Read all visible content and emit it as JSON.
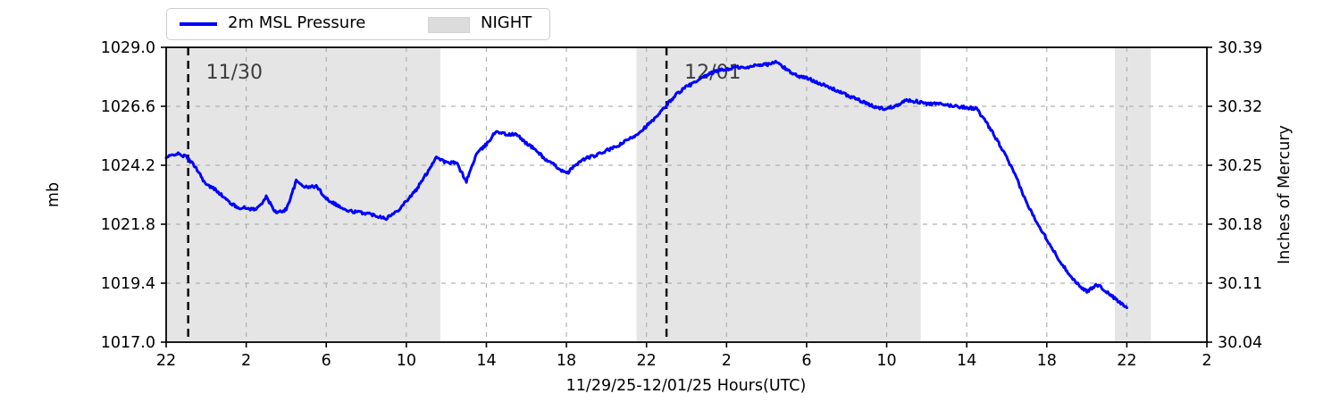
{
  "legend": {
    "pressure_label": "2m MSL Pressure",
    "night_label": "NIGHT"
  },
  "colors": {
    "line": "#0000ff",
    "night_fill": "#e5e5e5",
    "night_patch": "#dcdcdc",
    "grid": "#b0b0b0",
    "spine": "#000000",
    "day_line": "#000000",
    "day_label": "#3d3d3d"
  },
  "chart_data": {
    "type": "line",
    "title": "",
    "xlabel": "11/29/25-12/01/25  Hours(UTC)",
    "ylabel_left": "mb",
    "ylabel_right": "Inches of Mercury",
    "grid": true,
    "legend_position": "top-left",
    "x_axis": {
      "units": "hours after 11/29/25 22:00 UTC",
      "range_hours": [
        0,
        52
      ],
      "tick_hours": [
        0,
        4,
        8,
        12,
        16,
        20,
        24,
        28,
        32,
        36,
        40,
        44,
        48,
        52
      ],
      "tick_labels": [
        "22",
        "2",
        "6",
        "10",
        "14",
        "18",
        "22",
        "2",
        "6",
        "10",
        "14",
        "18",
        "22",
        "2"
      ]
    },
    "y_axis_left": {
      "lim": [
        1017.0,
        1029.0
      ],
      "ticks": [
        1017.0,
        1019.4,
        1021.8,
        1024.2,
        1026.6,
        1029.0
      ],
      "tick_labels": [
        "1017.0",
        "1019.4",
        "1021.8",
        "1024.2",
        "1026.6",
        "1029.0"
      ]
    },
    "y_axis_right": {
      "tick_labels": [
        "30.04",
        "30.11",
        "30.18",
        "30.25",
        "30.32",
        "30.39"
      ]
    },
    "night_regions_hours": [
      [
        0,
        13.7
      ],
      [
        23.5,
        37.7
      ],
      [
        47.4,
        49.2
      ]
    ],
    "day_markers": [
      {
        "x_hour": 1.1,
        "label": "11/30"
      },
      {
        "x_hour": 25.0,
        "label": "12/01"
      }
    ],
    "series": [
      {
        "name": "2m MSL Pressure",
        "color": "#0000ff",
        "x_hours": [
          0,
          0.5,
          1,
          1.5,
          2,
          2.5,
          3,
          3.5,
          4,
          4.5,
          5,
          5.5,
          6,
          6.5,
          7,
          7.5,
          8,
          8.5,
          9,
          9.5,
          10,
          10.5,
          11,
          11.5,
          12,
          12.5,
          13,
          13.5,
          14,
          14.5,
          15,
          15.5,
          16,
          16.5,
          17,
          17.5,
          18,
          18.5,
          19,
          19.5,
          20,
          20.5,
          21,
          21.5,
          22,
          22.5,
          23,
          23.5,
          24,
          24.5,
          25,
          25.5,
          26,
          26.5,
          27,
          27.5,
          28,
          28.5,
          29,
          29.5,
          30,
          30.5,
          31,
          31.5,
          32,
          32.5,
          33,
          33.5,
          34,
          34.5,
          35,
          35.5,
          36,
          36.5,
          37,
          37.5,
          38,
          38.5,
          39,
          39.5,
          40,
          40.5,
          41,
          41.5,
          42,
          42.5,
          43,
          43.5,
          44,
          44.5,
          45,
          45.5,
          46,
          46.5,
          47,
          47.5,
          48
        ],
        "values_mb": [
          1024.5,
          1024.68,
          1024.55,
          1024.1,
          1023.4,
          1023.2,
          1022.8,
          1022.5,
          1022.45,
          1022.4,
          1022.9,
          1022.25,
          1022.4,
          1023.55,
          1023.3,
          1023.35,
          1022.85,
          1022.6,
          1022.35,
          1022.3,
          1022.25,
          1022.15,
          1022.05,
          1022.3,
          1022.75,
          1023.2,
          1023.85,
          1024.55,
          1024.3,
          1024.3,
          1023.55,
          1024.65,
          1025.05,
          1025.6,
          1025.45,
          1025.45,
          1025.1,
          1024.8,
          1024.4,
          1024.15,
          1023.85,
          1024.25,
          1024.5,
          1024.6,
          1024.8,
          1024.95,
          1025.2,
          1025.45,
          1025.8,
          1026.15,
          1026.65,
          1027.1,
          1027.4,
          1027.6,
          1027.85,
          1028.05,
          1028.1,
          1028.2,
          1028.15,
          1028.3,
          1028.3,
          1028.4,
          1028.1,
          1027.85,
          1027.75,
          1027.6,
          1027.4,
          1027.25,
          1027.05,
          1026.9,
          1026.7,
          1026.55,
          1026.5,
          1026.65,
          1026.85,
          1026.8,
          1026.7,
          1026.7,
          1026.65,
          1026.6,
          1026.55,
          1026.5,
          1025.9,
          1025.25,
          1024.5,
          1023.65,
          1022.65,
          1021.9,
          1021.2,
          1020.5,
          1019.9,
          1019.4,
          1019.05,
          1019.35,
          1019.05,
          1018.7,
          1018.4
        ]
      }
    ]
  }
}
